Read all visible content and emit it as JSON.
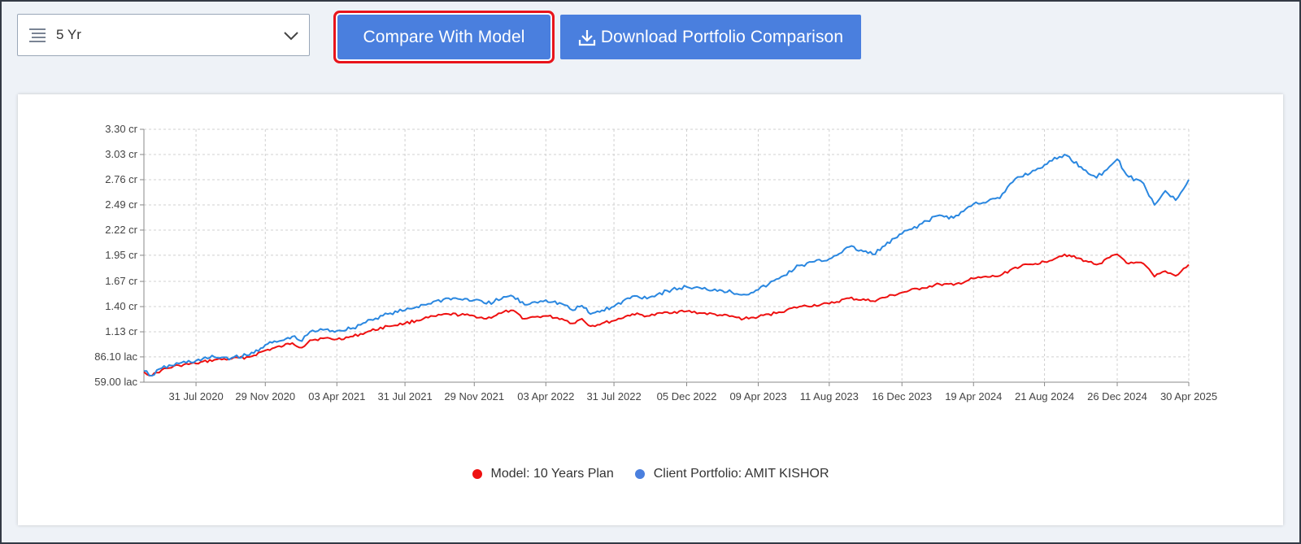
{
  "period_select": {
    "value": "5 Yr",
    "icon": "list-icon",
    "chevron": "chevron-down-icon"
  },
  "buttons": {
    "compare": "Compare With Model",
    "download": "Download Portfolio Comparison",
    "download_icon": "download-icon"
  },
  "colors": {
    "accent": "#4a7fde",
    "highlight": "#e8141b",
    "model_series": "#ee1111",
    "client_series": "#2a87e0"
  },
  "chart_data": {
    "type": "line",
    "title": "",
    "xlabel": "",
    "ylabel": "",
    "y_unit": "cr",
    "ylim": [
      0.59,
      3.3
    ],
    "y_ticks": [
      {
        "value": 0.59,
        "label": "59.00 lac"
      },
      {
        "value": 0.861,
        "label": "86.10 lac"
      },
      {
        "value": 1.13,
        "label": "1.13 cr"
      },
      {
        "value": 1.4,
        "label": "1.40 cr"
      },
      {
        "value": 1.67,
        "label": "1.67 cr"
      },
      {
        "value": 1.95,
        "label": "1.95 cr"
      },
      {
        "value": 2.22,
        "label": "2.22 cr"
      },
      {
        "value": 2.49,
        "label": "2.49 cr"
      },
      {
        "value": 2.76,
        "label": "2.76 cr"
      },
      {
        "value": 3.03,
        "label": "3.03 cr"
      },
      {
        "value": 3.3,
        "label": "3.30 cr"
      }
    ],
    "x_range": [
      "2020-05-01",
      "2025-04-30"
    ],
    "x_ticks": [
      {
        "date": "2020-07-31",
        "label": "31 Jul 2020"
      },
      {
        "date": "2020-11-29",
        "label": "29 Nov 2020"
      },
      {
        "date": "2021-04-03",
        "label": "03 Apr 2021"
      },
      {
        "date": "2021-07-31",
        "label": "31 Jul 2021"
      },
      {
        "date": "2021-11-29",
        "label": "29 Nov 2021"
      },
      {
        "date": "2022-04-03",
        "label": "03 Apr 2022"
      },
      {
        "date": "2022-07-31",
        "label": "31 Jul 2022"
      },
      {
        "date": "2022-12-05",
        "label": "05 Dec 2022"
      },
      {
        "date": "2023-04-09",
        "label": "09 Apr 2023"
      },
      {
        "date": "2023-08-11",
        "label": "11 Aug 2023"
      },
      {
        "date": "2023-12-16",
        "label": "16 Dec 2023"
      },
      {
        "date": "2024-04-19",
        "label": "19 Apr 2024"
      },
      {
        "date": "2024-08-21",
        "label": "21 Aug 2024"
      },
      {
        "date": "2024-12-26",
        "label": "26 Dec 2024"
      },
      {
        "date": "2025-04-30",
        "label": "30 Apr 2025"
      }
    ],
    "grid": true,
    "legend_position": "bottom-center",
    "series": [
      {
        "name": "Model: 10 Years Plan",
        "color": "#ee1111",
        "points": [
          [
            "2020-05-01",
            0.7
          ],
          [
            "2020-05-15",
            0.66
          ],
          [
            "2020-06-01",
            0.72
          ],
          [
            "2020-07-01",
            0.77
          ],
          [
            "2020-07-31",
            0.79
          ],
          [
            "2020-09-01",
            0.83
          ],
          [
            "2020-10-01",
            0.84
          ],
          [
            "2020-11-01",
            0.86
          ],
          [
            "2020-11-29",
            0.93
          ],
          [
            "2020-12-31",
            0.98
          ],
          [
            "2021-01-15",
            1.01
          ],
          [
            "2021-02-01",
            0.96
          ],
          [
            "2021-02-15",
            1.04
          ],
          [
            "2021-03-10",
            1.06
          ],
          [
            "2021-04-03",
            1.05
          ],
          [
            "2021-05-01",
            1.08
          ],
          [
            "2021-06-01",
            1.14
          ],
          [
            "2021-07-01",
            1.19
          ],
          [
            "2021-07-31",
            1.22
          ],
          [
            "2021-09-01",
            1.27
          ],
          [
            "2021-10-15",
            1.32
          ],
          [
            "2021-11-29",
            1.3
          ],
          [
            "2021-12-20",
            1.27
          ],
          [
            "2022-01-15",
            1.33
          ],
          [
            "2022-02-01",
            1.36
          ],
          [
            "2022-02-25",
            1.27
          ],
          [
            "2022-03-15",
            1.29
          ],
          [
            "2022-04-03",
            1.3
          ],
          [
            "2022-05-01",
            1.27
          ],
          [
            "2022-05-20",
            1.22
          ],
          [
            "2022-06-05",
            1.27
          ],
          [
            "2022-06-20",
            1.19
          ],
          [
            "2022-07-10",
            1.22
          ],
          [
            "2022-07-31",
            1.25
          ],
          [
            "2022-09-01",
            1.32
          ],
          [
            "2022-10-01",
            1.3
          ],
          [
            "2022-11-01",
            1.34
          ],
          [
            "2022-12-05",
            1.35
          ],
          [
            "2023-01-01",
            1.33
          ],
          [
            "2023-02-01",
            1.31
          ],
          [
            "2023-03-15",
            1.27
          ],
          [
            "2023-04-09",
            1.29
          ],
          [
            "2023-05-15",
            1.34
          ],
          [
            "2023-06-20",
            1.4
          ],
          [
            "2023-08-11",
            1.43
          ],
          [
            "2023-09-15",
            1.49
          ],
          [
            "2023-10-26",
            1.46
          ],
          [
            "2023-12-16",
            1.55
          ],
          [
            "2024-01-20",
            1.6
          ],
          [
            "2024-02-20",
            1.64
          ],
          [
            "2024-03-15",
            1.63
          ],
          [
            "2024-04-19",
            1.7
          ],
          [
            "2024-06-04",
            1.73
          ],
          [
            "2024-07-01",
            1.82
          ],
          [
            "2024-08-05",
            1.86
          ],
          [
            "2024-08-21",
            1.88
          ],
          [
            "2024-09-25",
            1.96
          ],
          [
            "2024-11-01",
            1.89
          ],
          [
            "2024-11-20",
            1.85
          ],
          [
            "2024-12-26",
            1.96
          ],
          [
            "2025-01-15",
            1.86
          ],
          [
            "2025-02-10",
            1.86
          ],
          [
            "2025-03-01",
            1.72
          ],
          [
            "2025-03-20",
            1.78
          ],
          [
            "2025-04-07",
            1.73
          ],
          [
            "2025-04-30",
            1.85
          ]
        ]
      },
      {
        "name": "Client Portfolio: AMIT KISHOR",
        "color": "#2a87e0",
        "points": [
          [
            "2020-05-01",
            0.71
          ],
          [
            "2020-05-15",
            0.66
          ],
          [
            "2020-06-01",
            0.74
          ],
          [
            "2020-07-01",
            0.79
          ],
          [
            "2020-07-31",
            0.82
          ],
          [
            "2020-09-01",
            0.86
          ],
          [
            "2020-10-01",
            0.85
          ],
          [
            "2020-11-01",
            0.88
          ],
          [
            "2020-11-29",
            0.99
          ],
          [
            "2020-12-31",
            1.04
          ],
          [
            "2021-01-15",
            1.08
          ],
          [
            "2021-02-01",
            1.03
          ],
          [
            "2021-02-15",
            1.13
          ],
          [
            "2021-03-10",
            1.15
          ],
          [
            "2021-04-03",
            1.14
          ],
          [
            "2021-05-01",
            1.17
          ],
          [
            "2021-06-01",
            1.26
          ],
          [
            "2021-07-01",
            1.32
          ],
          [
            "2021-07-31",
            1.36
          ],
          [
            "2021-09-01",
            1.42
          ],
          [
            "2021-10-15",
            1.49
          ],
          [
            "2021-11-29",
            1.47
          ],
          [
            "2021-12-20",
            1.43
          ],
          [
            "2022-01-15",
            1.48
          ],
          [
            "2022-02-01",
            1.52
          ],
          [
            "2022-02-25",
            1.42
          ],
          [
            "2022-03-15",
            1.45
          ],
          [
            "2022-04-03",
            1.47
          ],
          [
            "2022-05-01",
            1.43
          ],
          [
            "2022-05-20",
            1.36
          ],
          [
            "2022-06-05",
            1.41
          ],
          [
            "2022-06-20",
            1.32
          ],
          [
            "2022-07-10",
            1.36
          ],
          [
            "2022-07-31",
            1.4
          ],
          [
            "2022-09-01",
            1.51
          ],
          [
            "2022-10-01",
            1.5
          ],
          [
            "2022-11-01",
            1.57
          ],
          [
            "2022-12-05",
            1.61
          ],
          [
            "2023-01-01",
            1.59
          ],
          [
            "2023-02-01",
            1.58
          ],
          [
            "2023-03-15",
            1.53
          ],
          [
            "2023-04-09",
            1.58
          ],
          [
            "2023-05-15",
            1.7
          ],
          [
            "2023-06-20",
            1.84
          ],
          [
            "2023-08-11",
            1.91
          ],
          [
            "2023-09-15",
            2.04
          ],
          [
            "2023-10-26",
            1.96
          ],
          [
            "2023-12-16",
            2.18
          ],
          [
            "2024-01-20",
            2.29
          ],
          [
            "2024-02-20",
            2.38
          ],
          [
            "2024-03-15",
            2.35
          ],
          [
            "2024-04-19",
            2.5
          ],
          [
            "2024-06-04",
            2.56
          ],
          [
            "2024-07-01",
            2.77
          ],
          [
            "2024-08-05",
            2.86
          ],
          [
            "2024-08-21",
            2.92
          ],
          [
            "2024-09-25",
            3.03
          ],
          [
            "2024-11-01",
            2.86
          ],
          [
            "2024-11-20",
            2.78
          ],
          [
            "2024-12-26",
            2.98
          ],
          [
            "2025-01-15",
            2.79
          ],
          [
            "2025-02-10",
            2.72
          ],
          [
            "2025-03-01",
            2.49
          ],
          [
            "2025-03-20",
            2.64
          ],
          [
            "2025-04-07",
            2.54
          ],
          [
            "2025-04-30",
            2.76
          ]
        ]
      }
    ]
  }
}
